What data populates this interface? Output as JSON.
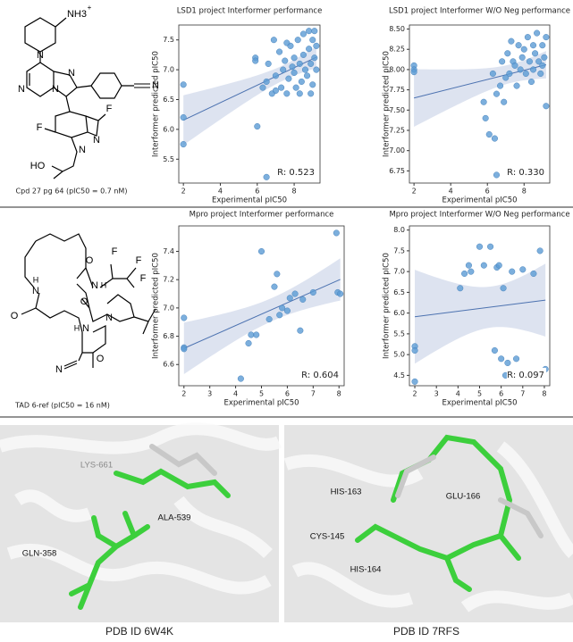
{
  "chart_data": [
    {
      "type": "scatter",
      "title": "LSD1 project Interformer performance",
      "x_label": "Experimental pIC50",
      "y_label": "Interformer predicted pIC50",
      "annotation": "R: 0.523",
      "color": "#5b9bd5",
      "fit_color": "#4c72b0",
      "band_color": "#dde3f0",
      "x": [
        2,
        2,
        2,
        5.9,
        5.9,
        6,
        6.3,
        6.5,
        6.5,
        6.6,
        6.8,
        7,
        7,
        7.2,
        7.3,
        7.4,
        7.5,
        7.6,
        7.7,
        7.8,
        7.9,
        8,
        8,
        8.1,
        8.2,
        8.3,
        8.4,
        8.5,
        8.5,
        8.6,
        8.7,
        8.8,
        8.8,
        8.9,
        9,
        9,
        9.1,
        9.1,
        9.2,
        9.2,
        6.9,
        7.6,
        8.3,
        8.9
      ],
      "values": [
        6.75,
        6.2,
        5.75,
        7.2,
        7.15,
        6.05,
        6.7,
        5.2,
        6.8,
        7.1,
        6.6,
        6.9,
        6.65,
        7.3,
        6.7,
        7.0,
        7.15,
        6.6,
        6.85,
        7.4,
        7.05,
        6.95,
        7.2,
        6.7,
        7.5,
        7.1,
        6.8,
        7.25,
        7.6,
        7.0,
        6.9,
        7.35,
        7.65,
        7.1,
        7.5,
        6.75,
        7.2,
        7.65,
        7.0,
        7.4,
        7.5,
        7.45,
        6.6,
        6.6
      ],
      "xlim": [
        1.75,
        9.4
      ],
      "ylim": [
        5.1,
        7.75
      ],
      "xticks": [
        2,
        4,
        6,
        8
      ],
      "yticks": [
        5.5,
        {
          "value": 6,
          "label": "6.0"
        },
        6.5,
        {
          "value": 7,
          "label": "7.0"
        },
        7.5
      ]
    },
    {
      "type": "scatter",
      "title": "LSD1 project Interformer W/O Neg performance",
      "x_label": "Experimental pIC50",
      "y_label": "Interformer predicted pIC50",
      "annotation": "R: 0.330",
      "color": "#5b9bd5",
      "fit_color": "#4c72b0",
      "band_color": "#dde3f0",
      "x": [
        2,
        2,
        2,
        5.8,
        5.9,
        6.1,
        6.3,
        6.4,
        6.5,
        6.5,
        6.7,
        6.8,
        7,
        7.1,
        7.2,
        7.4,
        7.5,
        7.6,
        7.7,
        7.8,
        7.9,
        8,
        8.1,
        8.2,
        8.3,
        8.4,
        8.5,
        8.6,
        8.7,
        8.8,
        8.9,
        9,
        9.1,
        9.2,
        9.2,
        8.5,
        7.3,
        6.9,
        9
      ],
      "values": [
        8.05,
        8.0,
        7.97,
        7.6,
        7.4,
        7.2,
        7.95,
        7.15,
        7.7,
        6.7,
        7.8,
        8.1,
        7.9,
        8.2,
        7.95,
        8.1,
        8.05,
        7.8,
        8.3,
        8.0,
        8.15,
        8.25,
        7.95,
        8.4,
        8.1,
        7.85,
        8.3,
        8.2,
        8.45,
        8.1,
        7.95,
        8.3,
        8.15,
        8.4,
        7.55,
        8.0,
        8.35,
        7.6,
        8.05
      ],
      "xlim": [
        1.75,
        9.4
      ],
      "ylim": [
        6.6,
        8.55
      ],
      "xticks": [
        2,
        4,
        6,
        8
      ],
      "yticks": [
        {
          "value": 6.75,
          "label": "6.75"
        },
        {
          "value": 7,
          "label": "7.00"
        },
        {
          "value": 7.25,
          "label": "7.25"
        },
        {
          "value": 7.5,
          "label": "7.50"
        },
        {
          "value": 7.75,
          "label": "7.75"
        },
        {
          "value": 8,
          "label": "8.00"
        },
        {
          "value": 8.25,
          "label": "8.25"
        },
        {
          "value": 8.5,
          "label": "8.50"
        }
      ]
    },
    {
      "type": "scatter",
      "title": "Mpro project Interformer performance",
      "x_label": "Experimental pIC50",
      "y_label": "Interformer predicted pIC50",
      "annotation": "R: 0.604",
      "color": "#5b9bd5",
      "fit_color": "#4c72b0",
      "band_color": "#dde3f0",
      "x": [
        2,
        2,
        2,
        4.2,
        4.5,
        4.6,
        4.8,
        5,
        5.3,
        5.5,
        5.6,
        5.7,
        5.8,
        6,
        6.1,
        6.3,
        6.5,
        6.6,
        7,
        7.9,
        7.95,
        8.05
      ],
      "values": [
        6.93,
        6.72,
        6.71,
        6.5,
        6.75,
        6.81,
        6.81,
        7.4,
        6.92,
        7.15,
        7.24,
        6.95,
        7.0,
        6.98,
        7.07,
        7.1,
        6.84,
        7.06,
        7.11,
        7.53,
        7.11,
        7.1
      ],
      "xlim": [
        1.8,
        8.2
      ],
      "ylim": [
        6.45,
        7.58
      ],
      "xticks": [
        2,
        3,
        4,
        5,
        6,
        7,
        8
      ],
      "yticks": [
        6.6,
        6.8,
        {
          "value": 7,
          "label": "7.0"
        },
        7.2,
        7.4
      ]
    },
    {
      "type": "scatter",
      "title": "Mpro project Interformer W/O Neg performance",
      "x_label": "Experimental pIC50",
      "y_label": "Interformer predicted pIC50",
      "annotation": "R: 0.097",
      "color": "#5b9bd5",
      "fit_color": "#4c72b0",
      "band_color": "#dde3f0",
      "x": [
        2,
        2,
        2,
        4.1,
        4.3,
        4.5,
        4.6,
        5,
        5.2,
        5.5,
        5.8,
        5.9,
        6,
        6.1,
        6.3,
        6.5,
        6.7,
        7,
        7.5,
        7.8,
        7.9,
        8.05,
        5.7,
        6.2
      ],
      "values": [
        5.2,
        5.1,
        4.35,
        6.6,
        6.95,
        7.15,
        7.0,
        7.6,
        7.15,
        7.6,
        7.1,
        7.15,
        4.9,
        6.6,
        4.8,
        7.0,
        4.9,
        7.05,
        6.95,
        7.5,
        4.6,
        4.65,
        5.1,
        4.5
      ],
      "xlim": [
        1.75,
        8.25
      ],
      "ylim": [
        4.25,
        8.1
      ],
      "xticks": [
        2,
        3,
        4,
        5,
        6,
        7,
        8
      ],
      "yticks": [
        4.5,
        {
          "value": 5,
          "label": "5.0"
        },
        5.5,
        {
          "value": 6,
          "label": "6.0"
        },
        6.5,
        {
          "value": 7,
          "label": "7.0"
        },
        7.5,
        {
          "value": 8,
          "label": "8.0"
        }
      ]
    }
  ],
  "molecule_1": {
    "caption": "Cpd 27 pg 64 (pIC50 = 0.7 nM)",
    "atoms": [
      "NH3",
      "+",
      "N",
      "N",
      "N",
      "N",
      "N",
      "F",
      "F",
      "N",
      "N",
      "HO"
    ]
  },
  "molecule_2": {
    "caption": "TAD 6-ref (pIC50 = 16 nM)",
    "atoms": [
      "F",
      "F",
      "F",
      "O",
      "N",
      "H",
      "H",
      "N",
      "O",
      "N",
      "H",
      "O",
      "N",
      "O",
      "N"
    ]
  },
  "structure_1": {
    "caption": "PDB ID 6W4K",
    "residues": [
      "LYS-661",
      "ALA-539",
      "GLN-358"
    ]
  },
  "structure_2": {
    "caption": "PDB ID 7RFS",
    "residues": [
      "HIS-163",
      "GLU-166",
      "CYS-145",
      "HIS-164"
    ]
  }
}
